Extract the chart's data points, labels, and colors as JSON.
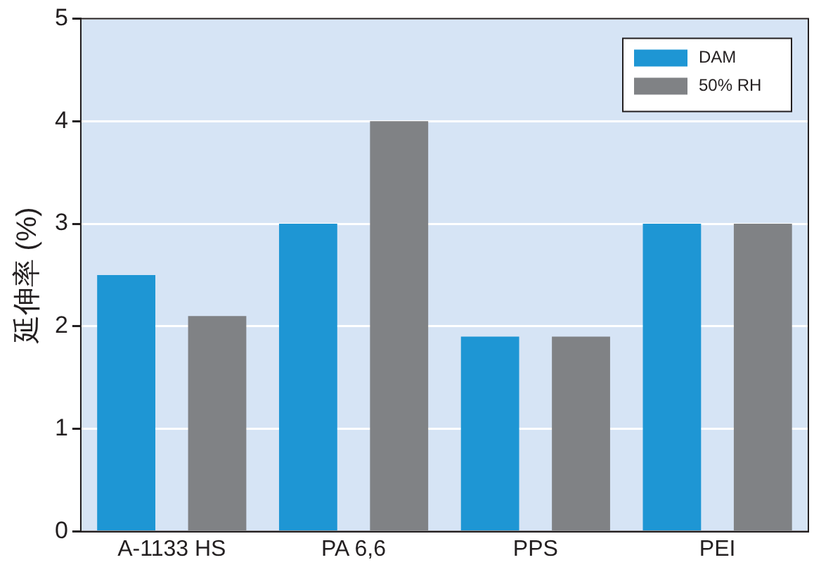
{
  "chart_data": {
    "type": "bar",
    "ylabel": "延伸率 (%)",
    "categories": [
      "A-1133 HS",
      "PA 6,6",
      "PPS",
      "PEI"
    ],
    "series": [
      {
        "name": "DAM",
        "color": "#1e96d4",
        "values": [
          2.5,
          3,
          1.9,
          3
        ]
      },
      {
        "name": "50% RH",
        "color": "#808285",
        "values": [
          2.1,
          4,
          1.9,
          3
        ]
      }
    ],
    "ylim": [
      0,
      5
    ],
    "yticks": [
      0,
      1,
      2,
      3,
      4,
      5
    ],
    "grid": "y",
    "legend": "top right"
  }
}
